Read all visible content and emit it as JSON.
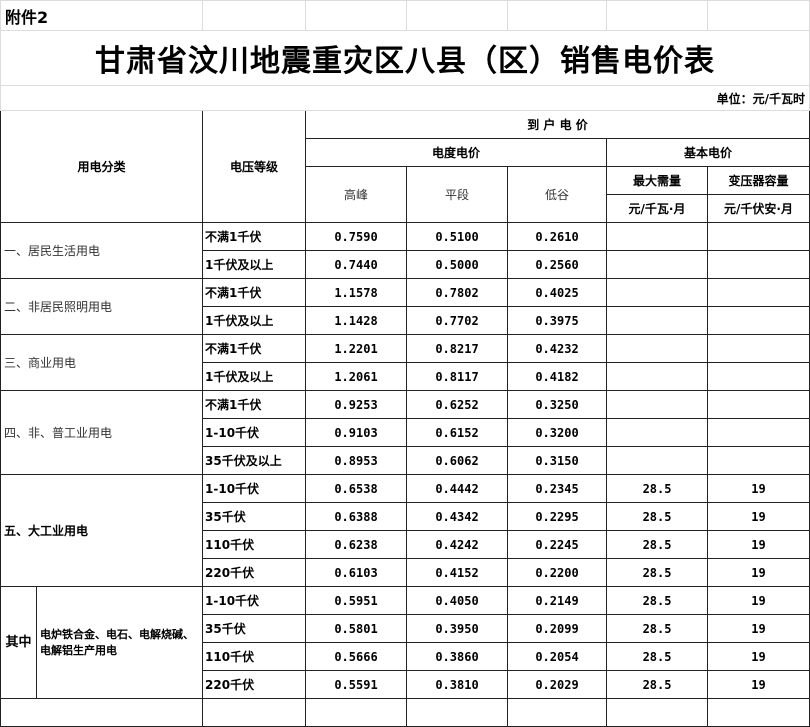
{
  "attachment_label": "附件2",
  "title": "甘肃省汶川地震重灾区八县（区）销售电价表",
  "unit": "单位：元/千瓦时",
  "header": {
    "category": "用电分类",
    "voltage": "电压等级",
    "retail_price": "到 户 电 价",
    "energy_price": "电度电价",
    "basic_price": "基本电价",
    "peak": "高峰",
    "flat": "平段",
    "valley": "低谷",
    "max_demand": "最大需量",
    "max_demand_unit": "元/千瓦·月",
    "transformer": "变压器容量",
    "transformer_unit": "元/千伏安·月"
  },
  "groups": [
    {
      "category": "一、居民生活用电",
      "rows": [
        {
          "voltage": "不满1千伏",
          "peak": "0.7590",
          "flat": "0.5100",
          "valley": "0.2610",
          "demand": "",
          "transformer": ""
        },
        {
          "voltage": "1千伏及以上",
          "peak": "0.7440",
          "flat": "0.5000",
          "valley": "0.2560",
          "demand": "",
          "transformer": ""
        }
      ]
    },
    {
      "category": "二、非居民照明用电",
      "rows": [
        {
          "voltage": "不满1千伏",
          "peak": "1.1578",
          "flat": "0.7802",
          "valley": "0.4025",
          "demand": "",
          "transformer": ""
        },
        {
          "voltage": "1千伏及以上",
          "peak": "1.1428",
          "flat": "0.7702",
          "valley": "0.3975",
          "demand": "",
          "transformer": ""
        }
      ]
    },
    {
      "category": "三、商业用电",
      "rows": [
        {
          "voltage": "不满1千伏",
          "peak": "1.2201",
          "flat": "0.8217",
          "valley": "0.4232",
          "demand": "",
          "transformer": ""
        },
        {
          "voltage": "1千伏及以上",
          "peak": "1.2061",
          "flat": "0.8117",
          "valley": "0.4182",
          "demand": "",
          "transformer": ""
        }
      ]
    },
    {
      "category": "四、非、普工业用电",
      "rows": [
        {
          "voltage": "不满1千伏",
          "peak": "0.9253",
          "flat": "0.6252",
          "valley": "0.3250",
          "demand": "",
          "transformer": ""
        },
        {
          "voltage": "1-10千伏",
          "peak": "0.9103",
          "flat": "0.6152",
          "valley": "0.3200",
          "demand": "",
          "transformer": ""
        },
        {
          "voltage": "35千伏及以上",
          "peak": "0.8953",
          "flat": "0.6062",
          "valley": "0.3150",
          "demand": "",
          "transformer": ""
        }
      ]
    },
    {
      "category": "五、大工业用电",
      "bold": true,
      "rows": [
        {
          "voltage": "1-10千伏",
          "peak": "0.6538",
          "flat": "0.4442",
          "valley": "0.2345",
          "demand": "28.5",
          "transformer": "19"
        },
        {
          "voltage": "35千伏",
          "peak": "0.6388",
          "flat": "0.4342",
          "valley": "0.2295",
          "demand": "28.5",
          "transformer": "19"
        },
        {
          "voltage": "110千伏",
          "peak": "0.6238",
          "flat": "0.4242",
          "valley": "0.2245",
          "demand": "28.5",
          "transformer": "19"
        },
        {
          "voltage": "220千伏",
          "peak": "0.6103",
          "flat": "0.4152",
          "valley": "0.2200",
          "demand": "28.5",
          "transformer": "19"
        }
      ]
    },
    {
      "category": "其中",
      "subcategory": "电炉铁合金、电石、电解烧碱、电解铝生产用电",
      "rows": [
        {
          "voltage": "1-10千伏",
          "peak": "0.5951",
          "flat": "0.4050",
          "valley": "0.2149",
          "demand": "28.5",
          "transformer": "19"
        },
        {
          "voltage": "35千伏",
          "peak": "0.5801",
          "flat": "0.3950",
          "valley": "0.2099",
          "demand": "28.5",
          "transformer": "19"
        },
        {
          "voltage": "110千伏",
          "peak": "0.5666",
          "flat": "0.3860",
          "valley": "0.2054",
          "demand": "28.5",
          "transformer": "19"
        },
        {
          "voltage": "220千伏",
          "peak": "0.5591",
          "flat": "0.3810",
          "valley": "0.2029",
          "demand": "28.5",
          "transformer": "19"
        }
      ]
    }
  ]
}
